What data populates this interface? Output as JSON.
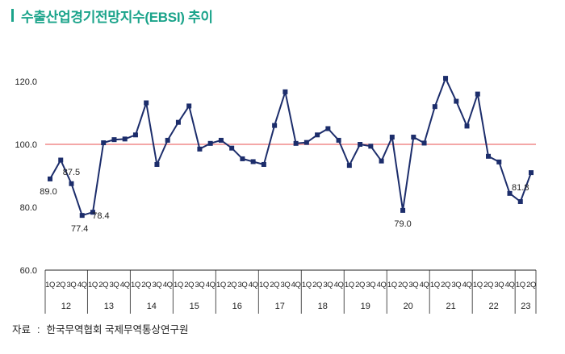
{
  "title": "수출산업경기전망지수(EBSI) 추이",
  "source": {
    "label": "자료",
    "text": "한국무역협회 국제무역통상연구원"
  },
  "colors": {
    "title": "#1aa38a",
    "line": "#1c2d6b",
    "reference": "#f08a8a",
    "axis": "#222222"
  },
  "chart_data": {
    "type": "line",
    "title": "수출산업경기전망지수(EBSI) 추이",
    "xlabel": "",
    "ylabel": "",
    "ylim": [
      60,
      120
    ],
    "yticks": [
      "60.0",
      "80.0",
      "100.0",
      "120.0"
    ],
    "reference_line": 100,
    "grid": false,
    "legend": "none",
    "x": [
      "12 1Q",
      "12 2Q",
      "12 3Q",
      "12 4Q",
      "13 1Q",
      "13 2Q",
      "13 3Q",
      "13 4Q",
      "14 1Q",
      "14 2Q",
      "14 3Q",
      "14 4Q",
      "15 1Q",
      "15 2Q",
      "15 3Q",
      "15 4Q",
      "16 1Q",
      "16 2Q",
      "16 3Q",
      "16 4Q",
      "17 1Q",
      "17 2Q",
      "17 3Q",
      "17 4Q",
      "18 1Q",
      "18 2Q",
      "18 3Q",
      "18 4Q",
      "19 1Q",
      "19 2Q",
      "19 3Q",
      "19 4Q",
      "20 1Q",
      "20 2Q",
      "20 3Q",
      "20 4Q",
      "21 1Q",
      "21 2Q",
      "21 3Q",
      "21 4Q",
      "22 1Q",
      "22 2Q",
      "22 3Q",
      "22 4Q",
      "23 1Q",
      "23 2Q"
    ],
    "quarter_labels": [
      "1Q",
      "2Q",
      "3Q",
      "4Q"
    ],
    "years": [
      "12",
      "13",
      "14",
      "15",
      "16",
      "17",
      "18",
      "19",
      "20",
      "21",
      "22",
      "23"
    ],
    "series": [
      {
        "values": [
          89.0,
          95.0,
          87.5,
          77.4,
          78.4,
          100.5,
          101.5,
          101.7,
          103.0,
          113.2,
          93.6,
          101.3,
          107.0,
          112.2,
          98.5,
          100.3,
          101.3,
          98.8,
          95.4,
          94.5,
          93.6,
          106.0,
          116.7,
          100.3,
          100.6,
          103.0,
          105.0,
          101.3,
          93.3,
          100.0,
          99.4,
          94.7,
          102.3,
          79.0,
          102.3,
          100.4,
          112.0,
          121.0,
          113.7,
          105.8,
          116.0,
          96.2,
          94.4,
          84.4,
          81.8,
          91.0
        ]
      }
    ],
    "data_labels": [
      {
        "index": 0,
        "text": "89.0"
      },
      {
        "index": 2,
        "text": "87.5"
      },
      {
        "index": 3,
        "text": "77.4"
      },
      {
        "index": 4,
        "text": "78.4"
      },
      {
        "index": 33,
        "text": "79.0"
      },
      {
        "index": 44,
        "text": "81.8"
      }
    ]
  }
}
